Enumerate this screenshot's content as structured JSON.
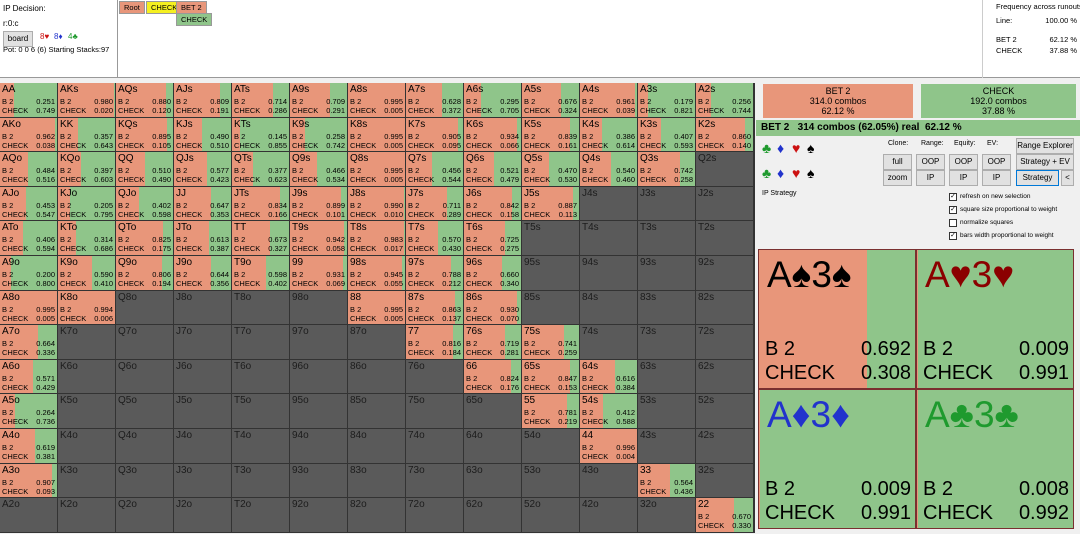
{
  "header": {
    "decision_label": "IP Decision:",
    "node": "r:0:c",
    "board_button": "board",
    "board_cards": [
      {
        "text": "8♥",
        "color": "#cc1111"
      },
      {
        "text": "8♦",
        "color": "#2233cc"
      },
      {
        "text": "4♣",
        "color": "#1f9a2e"
      }
    ],
    "pot": "Pot: 0 0 6 (6) Starting Stacks:97"
  },
  "tree": {
    "row1": [
      {
        "text": "Root",
        "color": "#e8967a"
      },
      {
        "text": "CHECK",
        "color": "#f5f020"
      },
      {
        "text": "BET 2",
        "color": "#e8967a"
      }
    ],
    "row2": [
      {
        "text": "CHECK",
        "color": "#8fc58a"
      }
    ]
  },
  "frequency": {
    "title": "Frequency across runouts:",
    "rows": [
      [
        "Line:",
        "100.00 %"
      ],
      [
        "BET 2",
        "62.12 %"
      ],
      [
        "CHECK",
        "37.88 %"
      ]
    ]
  },
  "action_labels": [
    "B 2",
    "CHECK"
  ],
  "grid": [
    [
      {
        "hand": "AA",
        "b2": "0.251",
        "check": "0.749"
      },
      {
        "hand": "AKs",
        "b2": "0.980",
        "check": "0.020"
      },
      {
        "hand": "AQs",
        "b2": "0.880",
        "check": "0.120"
      },
      {
        "hand": "AJs",
        "b2": "0.809",
        "check": "0.191"
      },
      {
        "hand": "ATs",
        "b2": "0.714",
        "check": "0.286"
      },
      {
        "hand": "A9s",
        "b2": "0.709",
        "check": "0.291"
      },
      {
        "hand": "A8s",
        "b2": "0.995",
        "check": "0.005"
      },
      {
        "hand": "A7s",
        "b2": "0.628",
        "check": "0.372"
      },
      {
        "hand": "A6s",
        "b2": "0.295",
        "check": "0.705"
      },
      {
        "hand": "A5s",
        "b2": "0.676",
        "check": "0.324"
      },
      {
        "hand": "A4s",
        "b2": "0.961",
        "check": "0.039"
      },
      {
        "hand": "A3s",
        "b2": "0.179",
        "check": "0.821"
      },
      {
        "hand": "A2s",
        "b2": "0.256",
        "check": "0.744"
      }
    ],
    [
      {
        "hand": "AKo",
        "b2": "0.962",
        "check": "0.038"
      },
      {
        "hand": "KK",
        "b2": "0.357",
        "check": "0.643"
      },
      {
        "hand": "KQs",
        "b2": "0.895",
        "check": "0.105"
      },
      {
        "hand": "KJs",
        "b2": "0.490",
        "check": "0.510"
      },
      {
        "hand": "KTs",
        "b2": "0.145",
        "check": "0.855"
      },
      {
        "hand": "K9s",
        "b2": "0.258",
        "check": "0.742"
      },
      {
        "hand": "K8s",
        "b2": "0.995",
        "check": "0.005"
      },
      {
        "hand": "K7s",
        "b2": "0.905",
        "check": "0.095"
      },
      {
        "hand": "K6s",
        "b2": "0.934",
        "check": "0.066"
      },
      {
        "hand": "K5s",
        "b2": "0.839",
        "check": "0.161"
      },
      {
        "hand": "K4s",
        "b2": "0.386",
        "check": "0.614"
      },
      {
        "hand": "K3s",
        "b2": "0.407",
        "check": "0.593"
      },
      {
        "hand": "K2s",
        "b2": "0.860",
        "check": "0.140"
      }
    ],
    [
      {
        "hand": "AQo",
        "b2": "0.484",
        "check": "0.516"
      },
      {
        "hand": "KQo",
        "b2": "0.397",
        "check": "0.603"
      },
      {
        "hand": "QQ",
        "b2": "0.510",
        "check": "0.490"
      },
      {
        "hand": "QJs",
        "b2": "0.577",
        "check": "0.423"
      },
      {
        "hand": "QTs",
        "b2": "0.377",
        "check": "0.623"
      },
      {
        "hand": "Q9s",
        "b2": "0.466",
        "check": "0.534"
      },
      {
        "hand": "Q8s",
        "b2": "0.995",
        "check": "0.005"
      },
      {
        "hand": "Q7s",
        "b2": "0.456",
        "check": "0.544"
      },
      {
        "hand": "Q6s",
        "b2": "0.521",
        "check": "0.479"
      },
      {
        "hand": "Q5s",
        "b2": "0.470",
        "check": "0.530"
      },
      {
        "hand": "Q4s",
        "b2": "0.540",
        "check": "0.460"
      },
      {
        "hand": "Q3s",
        "b2": "0.742",
        "check": "0.258"
      },
      {
        "hand": "Q2s"
      }
    ],
    [
      {
        "hand": "AJo",
        "b2": "0.453",
        "check": "0.547"
      },
      {
        "hand": "KJo",
        "b2": "0.205",
        "check": "0.795"
      },
      {
        "hand": "QJo",
        "b2": "0.402",
        "check": "0.598"
      },
      {
        "hand": "JJ",
        "b2": "0.647",
        "check": "0.353"
      },
      {
        "hand": "JTs",
        "b2": "0.834",
        "check": "0.166"
      },
      {
        "hand": "J9s",
        "b2": "0.899",
        "check": "0.101"
      },
      {
        "hand": "J8s",
        "b2": "0.990",
        "check": "0.010"
      },
      {
        "hand": "J7s",
        "b2": "0.711",
        "check": "0.289"
      },
      {
        "hand": "J6s",
        "b2": "0.842",
        "check": "0.158"
      },
      {
        "hand": "J5s",
        "b2": "0.887",
        "check": "0.113"
      },
      {
        "hand": "J4s"
      },
      {
        "hand": "J3s"
      },
      {
        "hand": "J2s"
      }
    ],
    [
      {
        "hand": "ATo",
        "b2": "0.406",
        "check": "0.594"
      },
      {
        "hand": "KTo",
        "b2": "0.314",
        "check": "0.686"
      },
      {
        "hand": "QTo",
        "b2": "0.825",
        "check": "0.175"
      },
      {
        "hand": "JTo",
        "b2": "0.613",
        "check": "0.387"
      },
      {
        "hand": "TT",
        "b2": "0.673",
        "check": "0.327"
      },
      {
        "hand": "T9s",
        "b2": "0.942",
        "check": "0.058"
      },
      {
        "hand": "T8s",
        "b2": "0.983",
        "check": "0.017"
      },
      {
        "hand": "T7s",
        "b2": "0.570",
        "check": "0.430"
      },
      {
        "hand": "T6s",
        "b2": "0.725",
        "check": "0.275"
      },
      {
        "hand": "T5s"
      },
      {
        "hand": "T4s"
      },
      {
        "hand": "T3s"
      },
      {
        "hand": "T2s"
      }
    ],
    [
      {
        "hand": "A9o",
        "b2": "0.200",
        "check": "0.800"
      },
      {
        "hand": "K9o",
        "b2": "0.590",
        "check": "0.410"
      },
      {
        "hand": "Q9o",
        "b2": "0.806",
        "check": "0.194"
      },
      {
        "hand": "J9o",
        "b2": "0.644",
        "check": "0.356"
      },
      {
        "hand": "T9o",
        "b2": "0.598",
        "check": "0.402"
      },
      {
        "hand": "99",
        "b2": "0.931",
        "check": "0.069"
      },
      {
        "hand": "98s",
        "b2": "0.945",
        "check": "0.055"
      },
      {
        "hand": "97s",
        "b2": "0.788",
        "check": "0.212"
      },
      {
        "hand": "96s",
        "b2": "0.660",
        "check": "0.340"
      },
      {
        "hand": "95s"
      },
      {
        "hand": "94s"
      },
      {
        "hand": "93s"
      },
      {
        "hand": "92s"
      }
    ],
    [
      {
        "hand": "A8o",
        "b2": "0.995",
        "check": "0.005"
      },
      {
        "hand": "K8o",
        "b2": "0.994",
        "check": "0.006"
      },
      {
        "hand": "Q8o"
      },
      {
        "hand": "J8o"
      },
      {
        "hand": "T8o"
      },
      {
        "hand": "98o"
      },
      {
        "hand": "88",
        "b2": "0.995",
        "check": "0.005"
      },
      {
        "hand": "87s",
        "b2": "0.863",
        "check": "0.137"
      },
      {
        "hand": "86s",
        "b2": "0.930",
        "check": "0.070"
      },
      {
        "hand": "85s"
      },
      {
        "hand": "84s"
      },
      {
        "hand": "83s"
      },
      {
        "hand": "82s"
      }
    ],
    [
      {
        "hand": "A7o",
        "b2": "0.664",
        "check": "0.336"
      },
      {
        "hand": "K7o"
      },
      {
        "hand": "Q7o"
      },
      {
        "hand": "J7o"
      },
      {
        "hand": "T7o"
      },
      {
        "hand": "97o"
      },
      {
        "hand": "87o"
      },
      {
        "hand": "77",
        "b2": "0.816",
        "check": "0.184"
      },
      {
        "hand": "76s",
        "b2": "0.719",
        "check": "0.281"
      },
      {
        "hand": "75s",
        "b2": "0.741",
        "check": "0.259"
      },
      {
        "hand": "74s"
      },
      {
        "hand": "73s"
      },
      {
        "hand": "72s"
      }
    ],
    [
      {
        "hand": "A6o",
        "b2": "0.571",
        "check": "0.429"
      },
      {
        "hand": "K6o"
      },
      {
        "hand": "Q6o"
      },
      {
        "hand": "J6o"
      },
      {
        "hand": "T6o"
      },
      {
        "hand": "96o"
      },
      {
        "hand": "86o"
      },
      {
        "hand": "76o"
      },
      {
        "hand": "66",
        "b2": "0.824",
        "check": "0.176"
      },
      {
        "hand": "65s",
        "b2": "0.847",
        "check": "0.153"
      },
      {
        "hand": "64s",
        "b2": "0.616",
        "check": "0.384"
      },
      {
        "hand": "63s"
      },
      {
        "hand": "62s"
      }
    ],
    [
      {
        "hand": "A5o",
        "b2": "0.264",
        "check": "0.736"
      },
      {
        "hand": "K5o"
      },
      {
        "hand": "Q5o"
      },
      {
        "hand": "J5o"
      },
      {
        "hand": "T5o"
      },
      {
        "hand": "95o"
      },
      {
        "hand": "85o"
      },
      {
        "hand": "75o"
      },
      {
        "hand": "65o"
      },
      {
        "hand": "55",
        "b2": "0.781",
        "check": "0.219"
      },
      {
        "hand": "54s",
        "b2": "0.412",
        "check": "0.588"
      },
      {
        "hand": "53s"
      },
      {
        "hand": "52s"
      }
    ],
    [
      {
        "hand": "A4o",
        "b2": "0.619",
        "check": "0.381"
      },
      {
        "hand": "K4o"
      },
      {
        "hand": "Q4o"
      },
      {
        "hand": "J4o"
      },
      {
        "hand": "T4o"
      },
      {
        "hand": "94o"
      },
      {
        "hand": "84o"
      },
      {
        "hand": "74o"
      },
      {
        "hand": "64o"
      },
      {
        "hand": "54o"
      },
      {
        "hand": "44",
        "b2": "0.996",
        "check": "0.004"
      },
      {
        "hand": "43s"
      },
      {
        "hand": "42s"
      }
    ],
    [
      {
        "hand": "A3o",
        "b2": "0.907",
        "check": "0.093"
      },
      {
        "hand": "K3o"
      },
      {
        "hand": "Q3o"
      },
      {
        "hand": "J3o"
      },
      {
        "hand": "T3o"
      },
      {
        "hand": "93o"
      },
      {
        "hand": "83o"
      },
      {
        "hand": "73o"
      },
      {
        "hand": "63o"
      },
      {
        "hand": "53o"
      },
      {
        "hand": "43o"
      },
      {
        "hand": "33",
        "b2": "0.564",
        "check": "0.436"
      },
      {
        "hand": "32s"
      }
    ],
    [
      {
        "hand": "A2o"
      },
      {
        "hand": "K2o"
      },
      {
        "hand": "Q2o"
      },
      {
        "hand": "J2o"
      },
      {
        "hand": "T2o"
      },
      {
        "hand": "92o"
      },
      {
        "hand": "82o"
      },
      {
        "hand": "72o"
      },
      {
        "hand": "62o"
      },
      {
        "hand": "52o"
      },
      {
        "hand": "42o"
      },
      {
        "hand": "32o"
      },
      {
        "hand": "22",
        "b2": "0.670",
        "check": "0.330"
      }
    ]
  ],
  "summary": {
    "boxes": [
      {
        "name": "BET 2",
        "combos": "314.0 combos",
        "pct": "62.12 %",
        "color": "#e8967a"
      },
      {
        "name": "CHECK",
        "combos": "192.0 combos",
        "pct": "37.88 %",
        "color": "#8fc58a"
      }
    ],
    "line": "BET 2   314 combos (62.05%) real  62.12 %"
  },
  "suits": [
    {
      "text": "♣",
      "color": "#1f9a2e"
    },
    {
      "text": "♦",
      "color": "#2233cc"
    },
    {
      "text": "♥",
      "color": "#cc1111"
    },
    {
      "text": "♠",
      "color": "#000000"
    }
  ],
  "controls": {
    "labels": [
      "Clone:",
      "Range:",
      "Equity:",
      "EV:"
    ],
    "row1": [
      "full",
      "OOP",
      "OOP",
      "OOP"
    ],
    "row2": [
      "zoom",
      "IP",
      "IP",
      "IP"
    ],
    "side": [
      "Range Explorer",
      "Strategy + EV",
      "Strategy",
      "<"
    ]
  },
  "strategy_title": "IP Strategy",
  "options": [
    {
      "label": "refresh on new selection",
      "checked": true
    },
    {
      "label": "square size proportional to weight",
      "checked": true
    },
    {
      "label": "normalize squares",
      "checked": false
    },
    {
      "label": "bars width proportional to weight",
      "checked": true
    }
  ],
  "combos": [
    {
      "cards": "A♠3♠",
      "color": "#000000",
      "b2": "0.692",
      "check": "0.308"
    },
    {
      "cards": "A♥3♥",
      "color": "#8b0000",
      "b2": "0.009",
      "check": "0.991"
    },
    {
      "cards": "A♦3♦",
      "color": "#2233cc",
      "b2": "0.009",
      "check": "0.991"
    },
    {
      "cards": "A♣3♣",
      "color": "#1f9a2e",
      "b2": "0.008",
      "check": "0.992"
    }
  ]
}
